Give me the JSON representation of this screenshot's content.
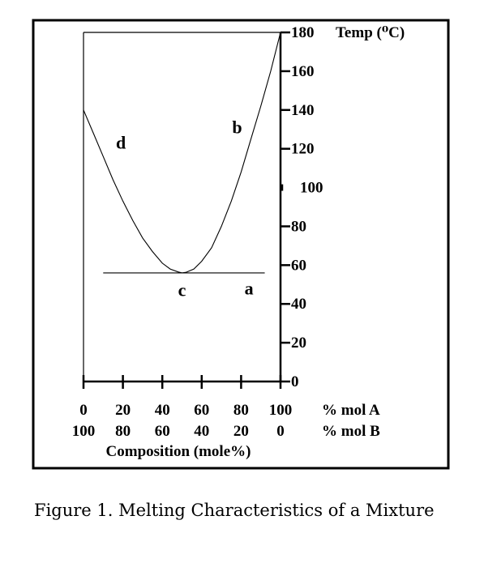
{
  "chart_data": {
    "type": "line",
    "xlabel": "Composition (mole%)",
    "x_axis_primary": {
      "label": "% mol A",
      "ticks": [
        0,
        20,
        40,
        60,
        80,
        100
      ],
      "tick_labels": [
        "0",
        "20",
        "40",
        "60",
        "80",
        "100"
      ]
    },
    "x_axis_secondary": {
      "label": "% mol B",
      "tick_labels": [
        "100",
        "80",
        "60",
        "40",
        "20",
        "0"
      ]
    },
    "ylabel": "Temp (⁰C)",
    "ylim": [
      0,
      180
    ],
    "xlim": [
      0,
      100
    ],
    "y_ticks": [
      0,
      20,
      40,
      60,
      80,
      100,
      120,
      140,
      160,
      180
    ],
    "y_tick_labels": [
      "0",
      "20",
      "40",
      "60",
      "80",
      "100",
      "120",
      "140",
      "160",
      "180"
    ],
    "series": [
      {
        "x": [
          0,
          5,
          10,
          15,
          20,
          25,
          30,
          35,
          40,
          44,
          48,
          50,
          52,
          56,
          60,
          65,
          70,
          75,
          80,
          85,
          90,
          95,
          100
        ],
        "y": [
          140,
          128,
          116,
          104,
          93,
          83,
          74,
          67,
          61,
          58,
          56.5,
          56,
          56.3,
          58,
          62,
          69,
          80,
          93,
          108,
          125,
          142,
          160,
          180
        ]
      }
    ],
    "hlines": [
      {
        "y": 56,
        "x_from": 10,
        "x_to": 92
      }
    ],
    "annotations": [
      {
        "text": "a",
        "x": 84,
        "y": 45
      },
      {
        "text": "b",
        "x": 78,
        "y": 128
      },
      {
        "text": "c",
        "x": 50,
        "y": 44
      },
      {
        "text": "d",
        "x": 19,
        "y": 120
      }
    ],
    "grid": false,
    "legend": "none"
  },
  "caption": "Figure 1.  Melting Characteristics of a Mixture"
}
